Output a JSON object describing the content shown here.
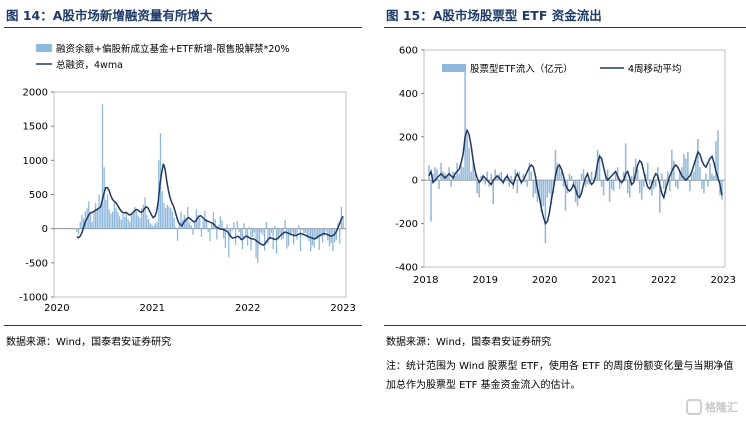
{
  "left": {
    "title": "图 14：A股市场新增融资量有所增大",
    "source": "数据来源：Wind，国泰君安证券研究"
  },
  "right": {
    "title": "图 15：A股市场股票型 ETF 资金流出",
    "source": "数据来源：Wind，国泰君安证券研究",
    "note": "注：统计范围为 Wind 股票型 ETF，使用各 ETF 的周度份额变化量与当期净值加总作为股票型 ETF 基金资金流入的估计。"
  },
  "watermark": {
    "text": "格隆汇"
  },
  "colors": {
    "bar": "#8fb8dd",
    "line": "#1f3864",
    "title": "#1d3b6a"
  },
  "chart_data": [
    {
      "id": "left",
      "type": "bar+line",
      "title": "",
      "xlabel": "",
      "ylabel": "",
      "ylim": [
        -1000,
        2000
      ],
      "yticks": [
        -1000,
        -500,
        0,
        500,
        1000,
        1500,
        2000
      ],
      "x_ticks": [
        "2020",
        "2021",
        "2022",
        "2023"
      ],
      "legend": {
        "position": "top-right"
      },
      "series": [
        {
          "name": "融资余额+偏股新成立基金+ETF新增-限售股解禁*20%",
          "kind": "bar",
          "values": [
            -50,
            -80,
            100,
            200,
            150,
            250,
            300,
            400,
            200,
            100,
            250,
            380,
            300,
            500,
            350,
            1820,
            900,
            420,
            500,
            280,
            220,
            250,
            380,
            300,
            240,
            180,
            130,
            220,
            170,
            240,
            140,
            100,
            200,
            260,
            320,
            250,
            180,
            160,
            300,
            350,
            460,
            200,
            140,
            80,
            60,
            40,
            80,
            100,
            1000,
            1400,
            550,
            380,
            300,
            350,
            320,
            300,
            250,
            160,
            30,
            -180,
            60,
            250,
            130,
            200,
            120,
            320,
            90,
            50,
            -90,
            100,
            280,
            200,
            160,
            -120,
            120,
            260,
            140,
            -50,
            -180,
            90,
            240,
            140,
            -160,
            50,
            180,
            120,
            -140,
            -280,
            60,
            -420,
            -120,
            -30,
            90,
            -240,
            110,
            -50,
            -160,
            -300,
            80,
            -130,
            -250,
            30,
            -320,
            -120,
            -60,
            -430,
            -500,
            -210,
            -60,
            -90,
            -320,
            100,
            -220,
            -140,
            -60,
            -300,
            40,
            -370,
            -150,
            -80,
            -170,
            -140,
            130,
            -290,
            -250,
            -100,
            -60,
            -230,
            -110,
            -160,
            50,
            -330,
            -20,
            -70,
            -60,
            -140,
            -180,
            -330,
            -240,
            -280,
            -160,
            -150,
            -310,
            -120,
            -200,
            -100,
            -40,
            -170,
            -260,
            -210,
            -330,
            -200,
            -170,
            80,
            -220,
            320,
            160
          ]
        },
        {
          "name": "总融资，4wma",
          "kind": "line",
          "values": [
            -120,
            -130,
            -110,
            -60,
            20,
            100,
            150,
            200,
            230,
            240,
            250,
            270,
            280,
            300,
            320,
            420,
            520,
            600,
            600,
            560,
            480,
            430,
            400,
            380,
            340,
            300,
            260,
            240,
            230,
            240,
            220,
            200,
            210,
            230,
            260,
            280,
            270,
            250,
            240,
            260,
            300,
            320,
            300,
            250,
            200,
            160,
            180,
            250,
            400,
            650,
            820,
            950,
            870,
            700,
            560,
            450,
            380,
            330,
            250,
            160,
            90,
            60,
            40,
            90,
            120,
            150,
            160,
            140,
            120,
            100,
            110,
            150,
            180,
            190,
            170,
            140,
            120,
            110,
            100,
            90,
            80,
            60,
            30,
            10,
            0,
            -10,
            -10,
            -20,
            -30,
            -50,
            -90,
            -120,
            -140,
            -130,
            -120,
            -110,
            -130,
            -160,
            -150,
            -120,
            -110,
            -120,
            -140,
            -150,
            -150,
            -160,
            -180,
            -200,
            -220,
            -230,
            -240,
            -220,
            -180,
            -150,
            -130,
            -140,
            -150,
            -160,
            -150,
            -130,
            -100,
            -80,
            -60,
            -50,
            -60,
            -70,
            -80,
            -90,
            -100,
            -100,
            -90,
            -80,
            -70,
            -80,
            -90,
            -100,
            -110,
            -120,
            -130,
            -140,
            -150,
            -140,
            -120,
            -100,
            -90,
            -80,
            -70,
            -80,
            -90,
            -100,
            -110,
            -100,
            -80,
            -40,
            20,
            80,
            150,
            180
          ]
        }
      ]
    },
    {
      "id": "right",
      "type": "bar+line",
      "title": "",
      "xlabel": "",
      "ylabel": "",
      "ylim": [
        -400,
        600
      ],
      "yticks": [
        -400,
        -200,
        0,
        200,
        400,
        600
      ],
      "x_ticks": [
        "2018",
        "2019",
        "2020",
        "2021",
        "2022",
        "2023"
      ],
      "legend": {
        "position": "top"
      },
      "series": [
        {
          "name": "股票型ETF流入（亿元）",
          "kind": "bar",
          "values": [
            70,
            -190,
            30,
            60,
            50,
            -40,
            80,
            40,
            30,
            20,
            60,
            -30,
            40,
            20,
            80,
            30,
            70,
            60,
            510,
            210,
            150,
            40,
            90,
            30,
            -60,
            -80,
            20,
            10,
            -20,
            40,
            -30,
            30,
            -110,
            50,
            20,
            30,
            40,
            -20,
            10,
            30,
            -30,
            20,
            -40,
            50,
            -60,
            40,
            -20,
            30,
            -10,
            -30,
            80,
            40,
            -80,
            -60,
            -100,
            -80,
            -150,
            -120,
            -290,
            -80,
            -60,
            -110,
            -60,
            140,
            80,
            60,
            40,
            -30,
            -140,
            -60,
            30,
            20,
            -20,
            -100,
            -120,
            -70,
            30,
            50,
            -30,
            -20,
            -20,
            40,
            -10,
            30,
            140,
            120,
            -30,
            -70,
            30,
            50,
            -100,
            -40,
            -50,
            30,
            60,
            -40,
            -20,
            40,
            170,
            -60,
            -80,
            20,
            60,
            100,
            50,
            -60,
            -90,
            -30,
            30,
            80,
            -20,
            -70,
            -40,
            -30,
            60,
            -150,
            30,
            -40,
            -60,
            40,
            -50,
            140,
            90,
            -30,
            -40,
            40,
            60,
            120,
            100,
            130,
            -50,
            30,
            40,
            100,
            190,
            60,
            -40,
            -60,
            30,
            -30,
            80,
            30,
            20,
            180,
            230,
            -70,
            -90
          ]
        },
        {
          "name": "4周移动平均",
          "kind": "line",
          "values": [
            20,
            40,
            -10,
            0,
            10,
            20,
            30,
            20,
            10,
            20,
            30,
            20,
            10,
            30,
            40,
            50,
            80,
            120,
            200,
            230,
            210,
            160,
            90,
            40,
            10,
            -10,
            0,
            20,
            10,
            0,
            -10,
            -20,
            0,
            10,
            20,
            10,
            0,
            -10,
            10,
            20,
            0,
            -10,
            -20,
            10,
            30,
            10,
            -10,
            0,
            20,
            40,
            60,
            70,
            60,
            20,
            -40,
            -80,
            -130,
            -170,
            -200,
            -190,
            -150,
            -90,
            -40,
            20,
            60,
            70,
            50,
            20,
            -20,
            -40,
            -50,
            -40,
            -20,
            -40,
            -70,
            -80,
            -60,
            -20,
            10,
            30,
            0,
            -20,
            -10,
            20,
            80,
            110,
            100,
            60,
            20,
            0,
            10,
            20,
            30,
            40,
            20,
            0,
            -10,
            0,
            30,
            40,
            10,
            -20,
            -10,
            30,
            70,
            90,
            80,
            40,
            0,
            -30,
            -40,
            -20,
            10,
            30,
            20,
            -20,
            -60,
            -80,
            -40,
            -10,
            20,
            40,
            60,
            70,
            60,
            40,
            20,
            10,
            0,
            10,
            20,
            40,
            70,
            100,
            130,
            120,
            90,
            70,
            60,
            80,
            100,
            110,
            80,
            40,
            10,
            -20,
            -70
          ]
        }
      ]
    }
  ]
}
